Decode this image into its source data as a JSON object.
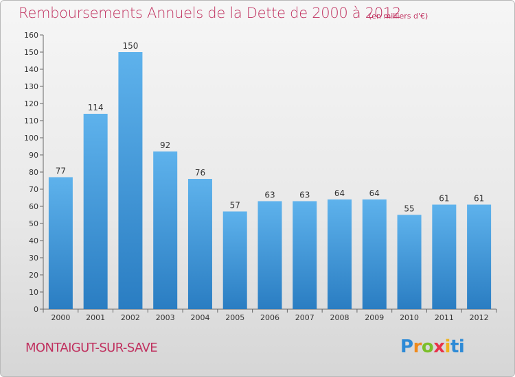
{
  "title": "Remboursements Annuels de la Dette de 2000 à 2012",
  "unit_note": "(en milliers d'€)",
  "commune": "MONTAIGUT-SUR-SAVE",
  "brand": "Proxiti",
  "colors": {
    "title": "#c0315f",
    "bar_top": "#5eb2ec",
    "bar_bottom": "#2a7dc2",
    "axis": "#666666"
  },
  "chart_data": {
    "type": "bar",
    "title": "Remboursements Annuels de la Dette de 2000 à 2012",
    "subtitle": "(en milliers d'€)",
    "xlabel": "",
    "ylabel": "",
    "categories": [
      "2000",
      "2001",
      "2002",
      "2003",
      "2004",
      "2005",
      "2006",
      "2007",
      "2008",
      "2009",
      "2010",
      "2011",
      "2012"
    ],
    "values": [
      77,
      114,
      150,
      92,
      76,
      57,
      63,
      63,
      64,
      64,
      55,
      61,
      61
    ],
    "ylim": [
      0,
      160
    ],
    "ytick_step": 10,
    "data_labels": true,
    "grid": false,
    "legend": "none"
  }
}
